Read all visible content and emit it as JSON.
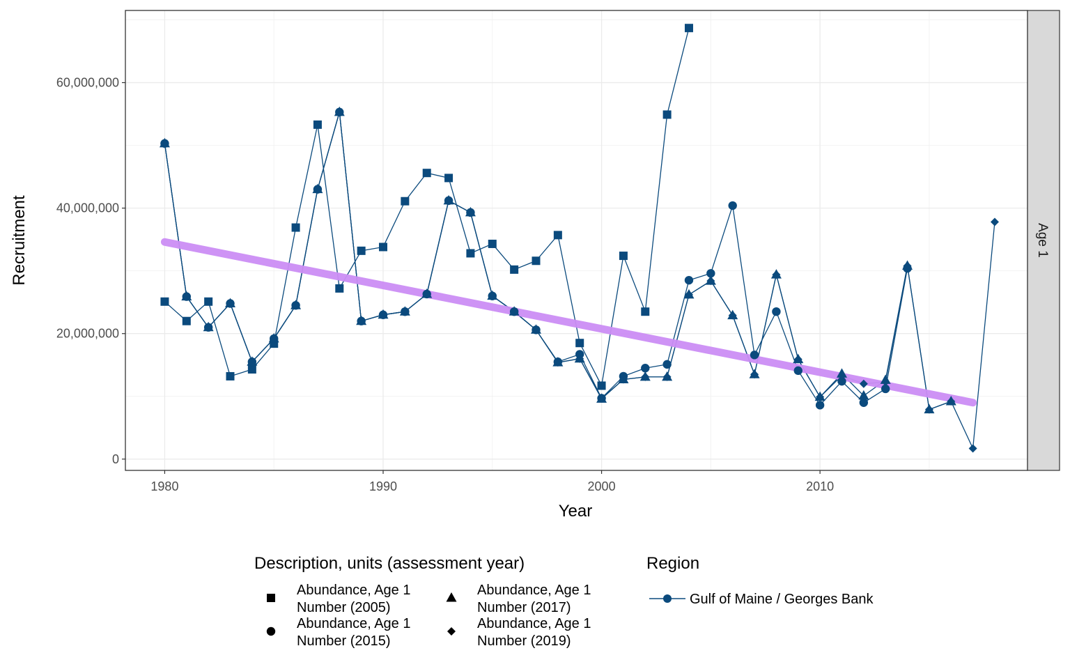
{
  "chart_data": {
    "type": "line",
    "xlabel": "Year",
    "ylabel": "Recruitment",
    "xlim": [
      1978.2,
      2019.5
    ],
    "ylim": [
      -1800000,
      71500000
    ],
    "x_ticks": [
      {
        "value": 1980,
        "label": "1980"
      },
      {
        "value": 1990,
        "label": "1990"
      },
      {
        "value": 2000,
        "label": "2000"
      },
      {
        "value": 2010,
        "label": "2010"
      }
    ],
    "y_ticks": [
      {
        "value": 0,
        "label": "0"
      },
      {
        "value": 20000000,
        "label": "20,000,000"
      },
      {
        "value": 40000000,
        "label": "40,000,000"
      },
      {
        "value": 60000000,
        "label": "60,000,000"
      }
    ],
    "grid": true,
    "facet_label": "Age 1",
    "series_color": "#0b4a7d",
    "trend_color": "#cc8ef5",
    "series": [
      {
        "name": "Abundance, Age 1 Number (2005)",
        "shape": "square",
        "x": [
          1980,
          1981,
          1982,
          1983,
          1984,
          1985,
          1986,
          1987,
          1988,
          1989,
          1990,
          1991,
          1992,
          1993,
          1994,
          1995,
          1996,
          1997,
          1998,
          1999,
          2000,
          2001,
          2002,
          2003,
          2004
        ],
        "y": [
          25100000,
          22000000,
          25100000,
          13200000,
          14300000,
          18400000,
          36900000,
          53300000,
          27200000,
          33200000,
          33800000,
          41100000,
          45600000,
          44800000,
          32800000,
          34300000,
          30200000,
          31600000,
          35700000,
          18500000,
          11700000,
          32400000,
          23500000,
          54900000,
          68700000
        ]
      },
      {
        "name": "Abundance, Age 1 Number (2015)",
        "shape": "circle",
        "x": [
          1980,
          1981,
          1982,
          1983,
          1984,
          1985,
          1986,
          1987,
          1988,
          1989,
          1990,
          1991,
          1992,
          1993,
          1994,
          1995,
          1996,
          1997,
          1998,
          1999,
          2000,
          2001,
          2002,
          2003,
          2004,
          2005,
          2006,
          2007,
          2008,
          2009,
          2010,
          2011,
          2012,
          2013,
          2014
        ],
        "y": [
          50300000,
          25900000,
          21000000,
          24800000,
          15500000,
          19200000,
          24500000,
          43000000,
          55300000,
          22000000,
          23000000,
          23500000,
          26300000,
          41200000,
          39300000,
          26000000,
          23500000,
          20600000,
          15500000,
          16700000,
          9700000,
          13200000,
          14500000,
          15100000,
          28500000,
          29600000,
          40400000,
          16600000,
          23500000,
          14100000,
          8600000,
          12400000,
          9000000,
          11200000,
          30400000
        ]
      },
      {
        "name": "Abundance, Age 1 Number (2017)",
        "shape": "triangle",
        "x": [
          1980,
          1981,
          1982,
          1983,
          1984,
          1985,
          1986,
          1987,
          1988,
          1989,
          1990,
          1991,
          1992,
          1993,
          1994,
          1995,
          1996,
          1997,
          1998,
          1999,
          2000,
          2001,
          2002,
          2003,
          2004,
          2005,
          2006,
          2007,
          2008,
          2009,
          2010,
          2011,
          2012,
          2013,
          2014,
          2015,
          2016
        ],
        "y": [
          50300000,
          25900000,
          21000000,
          24800000,
          15500000,
          19200000,
          24500000,
          43000000,
          55300000,
          22000000,
          23000000,
          23500000,
          26300000,
          41200000,
          39300000,
          26000000,
          23500000,
          20600000,
          15400000,
          16000000,
          9600000,
          12700000,
          13100000,
          13100000,
          26200000,
          28400000,
          22900000,
          13500000,
          29400000,
          15900000,
          9900000,
          13600000,
          10100000,
          12600000,
          30800000,
          7900000,
          9200000
        ]
      },
      {
        "name": "Abundance, Age 1 Number (2019)",
        "shape": "diamond",
        "x": [
          1980,
          1981,
          1982,
          1983,
          1984,
          1985,
          1986,
          1987,
          1988,
          1989,
          1990,
          1991,
          1992,
          1993,
          1994,
          1995,
          1996,
          1997,
          1998,
          1999,
          2000,
          2001,
          2002,
          2003,
          2004,
          2005,
          2006,
          2007,
          2008,
          2009,
          2010,
          2011,
          2012,
          2013,
          2014,
          2015,
          2016,
          2017,
          2018
        ],
        "y": [
          50300000,
          25900000,
          21000000,
          24800000,
          15500000,
          19200000,
          24500000,
          43000000,
          55300000,
          22000000,
          23000000,
          23500000,
          26300000,
          41200000,
          39300000,
          26000000,
          23500000,
          20600000,
          15400000,
          16000000,
          9700000,
          12700000,
          13100000,
          13100000,
          26200000,
          28400000,
          22900000,
          13500000,
          29400000,
          15900000,
          9900000,
          13300000,
          12000000,
          12300000,
          30800000,
          7900000,
          9200000,
          1700000,
          37800000
        ]
      }
    ],
    "trend": {
      "x": [
        1980,
        2017
      ],
      "y": [
        34600000,
        9000000
      ]
    }
  },
  "legend": {
    "shape_title": "Description, units (assessment year)",
    "items": [
      {
        "shape": "square",
        "line1": "Abundance, Age 1",
        "line2": "Number (2005)"
      },
      {
        "shape": "triangle",
        "line1": "Abundance, Age 1",
        "line2": "Number (2017)"
      },
      {
        "shape": "circle",
        "line1": "Abundance, Age 1",
        "line2": "Number (2015)"
      },
      {
        "shape": "diamond",
        "line1": "Abundance, Age 1",
        "line2": "Number (2019)"
      }
    ],
    "region_title": "Region",
    "region_item": "Gulf of Maine / Georges Bank"
  }
}
